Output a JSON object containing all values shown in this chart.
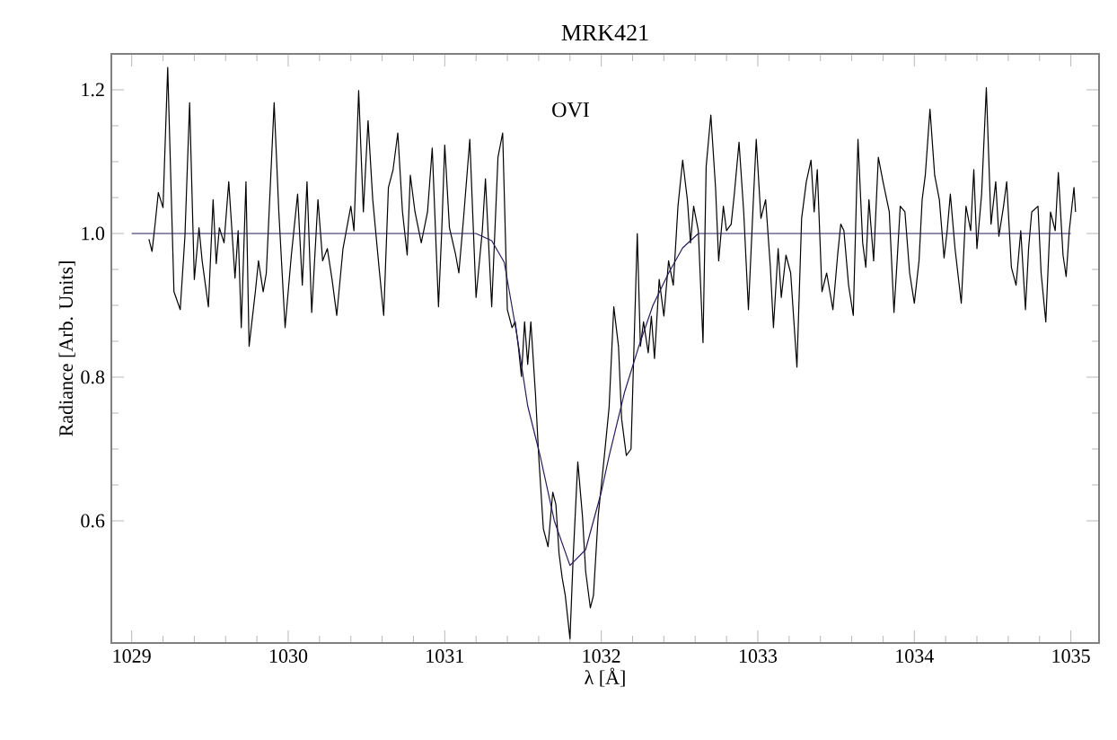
{
  "chart_data": {
    "type": "line",
    "title": "MRK421",
    "xlabel": "λ [Å]",
    "ylabel": "Radiance [Arb. Units]",
    "annotations": [
      "OVI"
    ],
    "xlim": [
      1028.87,
      1035.18
    ],
    "ylim": [
      0.43,
      1.25
    ],
    "xticks": [
      1029,
      1030,
      1031,
      1032,
      1033,
      1034,
      1035
    ],
    "yticks": [
      0.6,
      0.8,
      {
        "value": 1.0,
        "label": "1.0"
      },
      1.2
    ],
    "marker": "none",
    "line_style": "solid",
    "series": [
      {
        "color": "#000000",
        "x": [
          1029.11,
          1029.13,
          1029.15,
          1029.17,
          1029.2,
          1029.23,
          1029.27,
          1029.31,
          1029.34,
          1029.37,
          1029.4,
          1029.43,
          1029.45,
          1029.49,
          1029.52,
          1029.54,
          1029.56,
          1029.59,
          1029.62,
          1029.66,
          1029.68,
          1029.7,
          1029.73,
          1029.75,
          1029.79,
          1029.81,
          1029.84,
          1029.86,
          1029.91,
          1029.94,
          1029.98,
          1030.02,
          1030.06,
          1030.09,
          1030.12,
          1030.15,
          1030.19,
          1030.22,
          1030.25,
          1030.28,
          1030.31,
          1030.35,
          1030.4,
          1030.42,
          1030.45,
          1030.48,
          1030.51,
          1030.54,
          1030.58,
          1030.61,
          1030.64,
          1030.67,
          1030.7,
          1030.73,
          1030.76,
          1030.78,
          1030.81,
          1030.85,
          1030.89,
          1030.92,
          1030.96,
          1030.98,
          1031.0,
          1031.03,
          1031.07,
          1031.09,
          1031.12,
          1031.16,
          1031.2,
          1031.24,
          1031.26,
          1031.3,
          1031.34,
          1031.37,
          1031.4,
          1031.43,
          1031.45,
          1031.47,
          1031.49,
          1031.51,
          1031.53,
          1031.55,
          1031.58,
          1031.6,
          1031.63,
          1031.66,
          1031.69,
          1031.71,
          1031.73,
          1031.75,
          1031.77,
          1031.8,
          1031.82,
          1031.85,
          1031.88,
          1031.9,
          1031.93,
          1031.95,
          1031.98,
          1032.02,
          1032.05,
          1032.08,
          1032.11,
          1032.13,
          1032.16,
          1032.19,
          1032.23,
          1032.25,
          1032.27,
          1032.3,
          1032.32,
          1032.34,
          1032.37,
          1032.4,
          1032.43,
          1032.46,
          1032.49,
          1032.52,
          1032.55,
          1032.57,
          1032.59,
          1032.62,
          1032.65,
          1032.67,
          1032.7,
          1032.73,
          1032.75,
          1032.78,
          1032.8,
          1032.83,
          1032.85,
          1032.88,
          1032.91,
          1032.94,
          1032.97,
          1032.99,
          1033.02,
          1033.05,
          1033.08,
          1033.1,
          1033.13,
          1033.15,
          1033.18,
          1033.21,
          1033.25,
          1033.28,
          1033.31,
          1033.34,
          1033.36,
          1033.38,
          1033.41,
          1033.44,
          1033.48,
          1033.51,
          1033.53,
          1033.55,
          1033.58,
          1033.61,
          1033.64,
          1033.67,
          1033.69,
          1033.71,
          1033.74,
          1033.77,
          1033.8,
          1033.84,
          1033.87,
          1033.89,
          1033.91,
          1033.94,
          1033.97,
          1034.0,
          1034.03,
          1034.05,
          1034.07,
          1034.1,
          1034.13,
          1034.16,
          1034.19,
          1034.21,
          1034.23,
          1034.26,
          1034.3,
          1034.33,
          1034.36,
          1034.38,
          1034.4,
          1034.43,
          1034.46,
          1034.49,
          1034.52,
          1034.54,
          1034.57,
          1034.59,
          1034.62,
          1034.65,
          1034.68,
          1034.71,
          1034.73,
          1034.75,
          1034.79,
          1034.81,
          1034.84,
          1034.87,
          1034.9,
          1034.92,
          1034.95,
          1034.97,
          1034.99,
          1035.02,
          1035.03
        ],
        "values": [
          0.992,
          0.975,
          1.014,
          1.057,
          1.036,
          1.231,
          0.919,
          0.894,
          0.996,
          1.182,
          0.936,
          1.008,
          0.962,
          0.898,
          1.047,
          0.958,
          1.008,
          0.987,
          1.072,
          0.938,
          1.004,
          0.869,
          1.072,
          0.843,
          0.919,
          0.962,
          0.919,
          0.945,
          1.182,
          1.03,
          0.869,
          0.97,
          1.055,
          0.928,
          1.072,
          0.89,
          1.047,
          0.962,
          0.979,
          0.936,
          0.886,
          0.979,
          1.038,
          1.004,
          1.199,
          1.03,
          1.157,
          1.047,
          0.953,
          0.886,
          1.064,
          1.089,
          1.14,
          1.03,
          0.97,
          1.081,
          1.03,
          0.987,
          1.03,
          1.119,
          0.898,
          1.0,
          1.123,
          1.008,
          0.97,
          0.945,
          1.021,
          1.131,
          0.911,
          1.004,
          1.076,
          0.898,
          1.106,
          1.14,
          0.894,
          0.869,
          0.877,
          0.843,
          0.801,
          0.877,
          0.818,
          0.877,
          0.775,
          0.691,
          0.589,
          0.564,
          0.64,
          0.623,
          0.555,
          0.521,
          0.496,
          0.436,
          0.547,
          0.682,
          0.606,
          0.53,
          0.479,
          0.496,
          0.606,
          0.691,
          0.758,
          0.898,
          0.843,
          0.742,
          0.691,
          0.7,
          1.0,
          0.843,
          0.877,
          0.834,
          0.885,
          0.826,
          0.936,
          0.885,
          0.962,
          0.928,
          1.038,
          1.102,
          1.047,
          0.987,
          1.038,
          1.004,
          0.848,
          1.093,
          1.165,
          1.064,
          0.962,
          1.038,
          1.004,
          1.013,
          1.055,
          1.127,
          1.03,
          0.894,
          1.038,
          1.131,
          1.021,
          1.047,
          0.954,
          0.869,
          0.979,
          0.911,
          0.97,
          0.945,
          0.814,
          1.021,
          1.072,
          1.102,
          1.03,
          1.089,
          0.919,
          0.945,
          0.894,
          0.97,
          1.013,
          1.004,
          0.928,
          0.886,
          1.131,
          0.987,
          0.953,
          1.047,
          0.962,
          1.106,
          1.072,
          1.03,
          0.89,
          0.962,
          1.038,
          1.03,
          0.945,
          0.903,
          0.962,
          1.047,
          1.081,
          1.173,
          1.081,
          1.047,
          0.966,
          1.004,
          1.055,
          0.979,
          0.903,
          1.038,
          1.004,
          1.089,
          0.979,
          1.055,
          1.203,
          1.013,
          1.072,
          0.996,
          1.038,
          1.072,
          0.953,
          0.928,
          1.004,
          0.894,
          0.979,
          1.03,
          1.038,
          0.945,
          0.877,
          1.03,
          1.004,
          1.085,
          0.97,
          0.94,
          1.004,
          1.064,
          1.03
        ]
      },
      {
        "color": "#2a1a5c",
        "x": [
          1029.0,
          1031.2,
          1031.3,
          1031.38,
          1031.46,
          1031.53,
          1031.61,
          1031.7,
          1031.8,
          1031.9,
          1032.0,
          1032.05,
          1032.15,
          1032.24,
          1032.33,
          1032.43,
          1032.52,
          1032.62,
          1035.0
        ],
        "values": [
          1.0,
          1.0,
          0.99,
          0.96,
          0.86,
          0.76,
          0.69,
          0.6,
          0.538,
          0.56,
          0.64,
          0.69,
          0.78,
          0.843,
          0.9,
          0.945,
          0.98,
          1.0,
          1.0
        ]
      }
    ]
  }
}
